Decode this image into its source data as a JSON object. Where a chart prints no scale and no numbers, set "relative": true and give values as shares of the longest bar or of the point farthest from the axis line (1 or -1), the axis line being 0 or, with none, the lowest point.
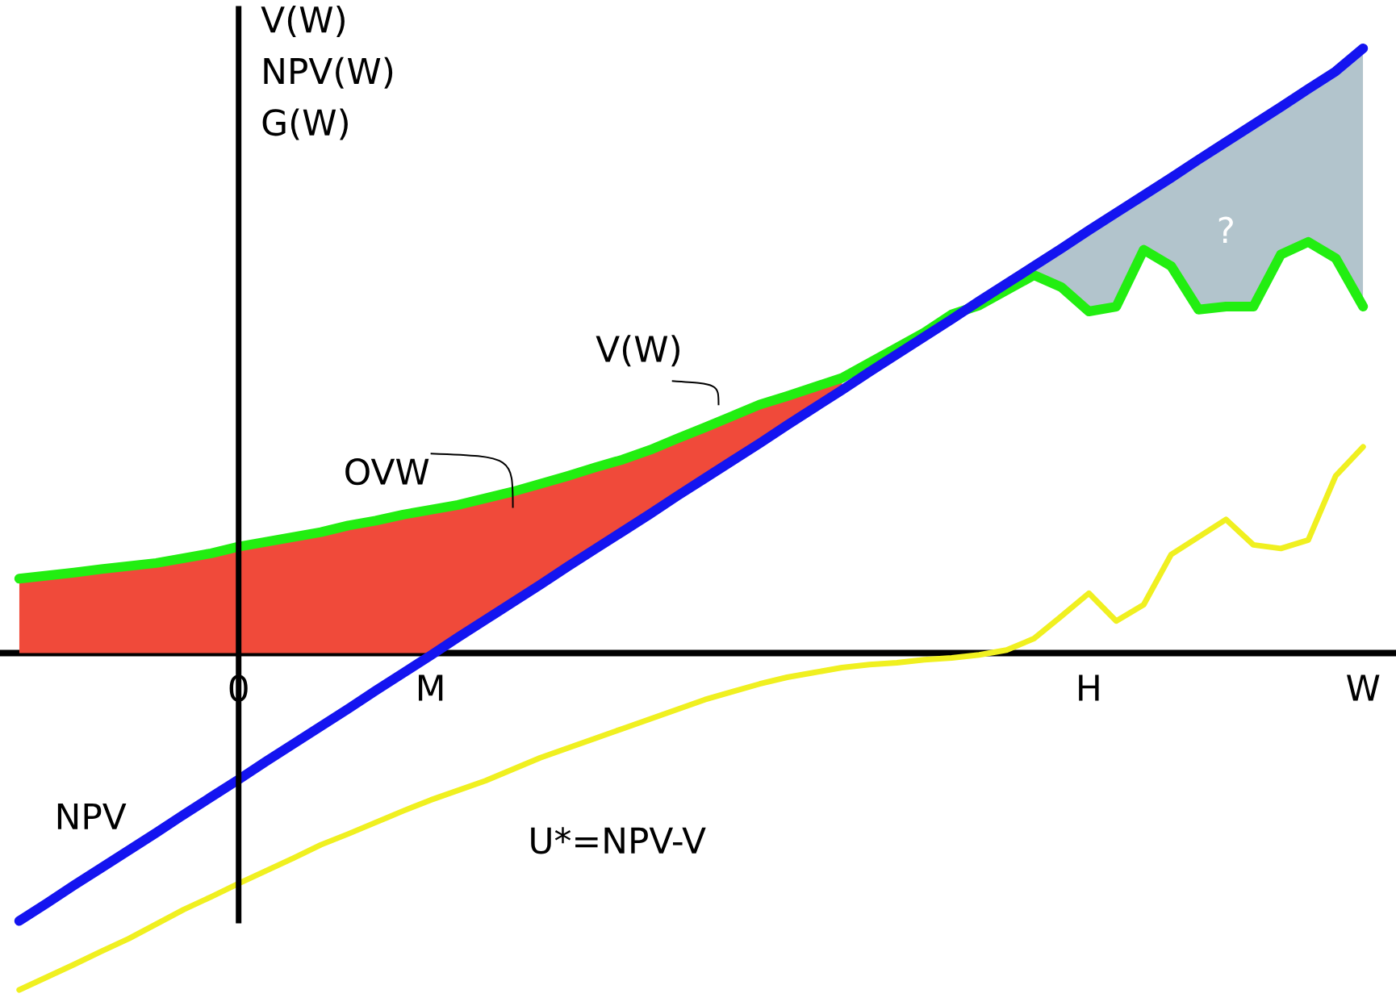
{
  "chart_data": {
    "type": "line",
    "relative": true,
    "ylabel": "V(W) NPV(W) G(W)",
    "categories": [
      null,
      null,
      null,
      null,
      null,
      null,
      null,
      null,
      "0",
      null,
      null,
      null,
      null,
      null,
      null,
      "M",
      null,
      null,
      null,
      null,
      null,
      null,
      null,
      null,
      null,
      null,
      null,
      null,
      null,
      null,
      null,
      null,
      null,
      null,
      null,
      null,
      null,
      null,
      null,
      "H",
      null,
      null,
      null,
      null,
      null,
      null,
      null,
      null,
      null,
      "W"
    ],
    "ref_lines": [
      {
        "axis": "x",
        "value": "0"
      }
    ],
    "series": [
      {
        "name": "OVW",
        "type": "area",
        "color": "#f04a3a",
        "values": [
          0.123,
          0.128,
          0.133,
          0.139,
          0.144,
          0.149,
          0.157,
          0.165,
          0.176,
          0.184,
          0.192,
          0.2,
          0.211,
          0.219,
          0.229,
          0.237,
          0.245,
          0.256,
          0.267,
          0.28,
          0.293,
          0.307,
          0.32,
          0.336,
          0.355,
          0.373,
          0.392,
          0.411,
          0.425,
          0.44,
          0.455,
          null,
          null,
          null,
          null,
          null,
          null,
          null,
          null,
          null,
          null,
          null,
          null,
          null,
          null,
          null,
          null,
          null,
          null,
          null
        ]
      },
      {
        "name": "?",
        "type": "area",
        "color": "#b2c4cc",
        "values": [
          null,
          null,
          null,
          null,
          null,
          null,
          null,
          null,
          null,
          null,
          null,
          null,
          null,
          null,
          null,
          null,
          null,
          null,
          null,
          null,
          null,
          null,
          null,
          null,
          null,
          null,
          null,
          null,
          null,
          null,
          null,
          null,
          null,
          null,
          null,
          null,
          null,
          0.64,
          0.669,
          0.699,
          0.728,
          0.757,
          0.786,
          0.816,
          0.845,
          0.874,
          0.903,
          0.933,
          0.962,
          1
        ]
      },
      {
        "name": "V(W)",
        "type": "line",
        "color": "#22ee11",
        "values": [
          0.123,
          0.128,
          0.133,
          0.139,
          0.144,
          0.149,
          0.157,
          0.165,
          0.176,
          0.184,
          0.192,
          0.2,
          0.211,
          0.219,
          0.229,
          0.237,
          0.245,
          0.256,
          0.267,
          0.28,
          0.293,
          0.307,
          0.32,
          0.336,
          0.355,
          0.373,
          0.392,
          0.411,
          0.425,
          0.44,
          0.455,
          0.48,
          0.505,
          0.53,
          0.56,
          0.575,
          0.6,
          0.625,
          0.605,
          0.565,
          0.573,
          0.667,
          0.64,
          0.568,
          0.573,
          0.573,
          0.659,
          0.68,
          0.653,
          0.573
        ]
      },
      {
        "name": "NPV",
        "type": "line",
        "color": "#1414f0",
        "values": [
          -0.443,
          -0.414,
          -0.384,
          -0.355,
          -0.326,
          -0.297,
          -0.267,
          -0.238,
          -0.209,
          -0.179,
          -0.15,
          -0.121,
          -0.092,
          -0.062,
          -0.033,
          -0.004,
          0.026,
          0.055,
          0.084,
          0.113,
          0.143,
          0.172,
          0.201,
          0.23,
          0.26,
          0.289,
          0.318,
          0.347,
          0.377,
          0.406,
          0.435,
          0.465,
          0.494,
          0.523,
          0.552,
          0.582,
          0.611,
          0.64,
          0.669,
          0.699,
          0.728,
          0.757,
          0.786,
          0.816,
          0.845,
          0.874,
          0.903,
          0.933,
          0.962,
          1
        ]
      },
      {
        "name": "U*=NPV-V",
        "type": "line",
        "color": "#f0f020",
        "values": [
          -0.557,
          -0.536,
          -0.515,
          -0.493,
          -0.472,
          -0.448,
          -0.424,
          -0.403,
          -0.381,
          -0.36,
          -0.339,
          -0.317,
          -0.299,
          -0.28,
          -0.261,
          -0.243,
          -0.227,
          -0.211,
          -0.192,
          -0.173,
          -0.157,
          -0.141,
          -0.125,
          -0.109,
          -0.093,
          -0.077,
          -0.064,
          -0.051,
          -0.04,
          -0.032,
          -0.024,
          -0.019,
          -0.016,
          -0.011,
          -0.008,
          -0.003,
          0.005,
          0.024,
          0.061,
          0.099,
          0.053,
          0.08,
          0.163,
          0.192,
          0.221,
          0.179,
          0.173,
          0.187,
          0.293,
          0.341
        ]
      }
    ]
  }
}
